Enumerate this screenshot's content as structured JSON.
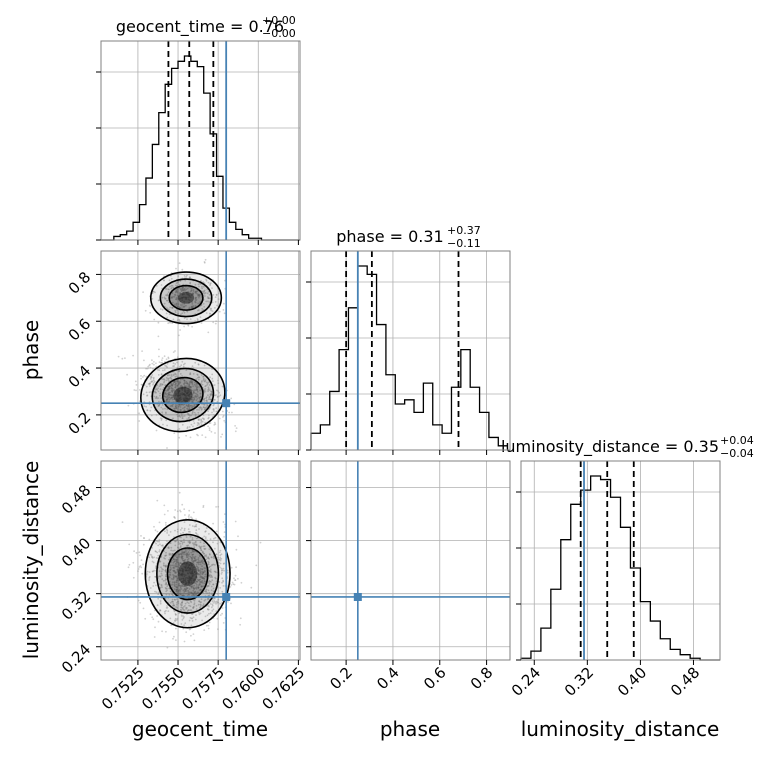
{
  "colors": {
    "truth": "#4682b4",
    "hist": "#000000",
    "grid": "#b0b0b0",
    "frame": "#808080",
    "quantile": "#000000",
    "density_fill": "#000000",
    "scatter": "#9a9a9a"
  },
  "chart_data": {
    "type": "corner",
    "title": "",
    "parameters": [
      {
        "name": "geocent_time",
        "xlabel": "geocent_time",
        "title_text": "geocent_time = 0.76",
        "title_sup": "+0.00",
        "title_sub": "−0.00",
        "ticks": [
          0.7525,
          0.755,
          0.7575,
          0.76,
          0.7625
        ],
        "tick_labels": [
          "0.7525",
          "0.7550",
          "0.7575",
          "0.7600",
          "0.7625"
        ],
        "range": [
          0.7502,
          0.7626
        ],
        "truth": 0.758,
        "quantiles": [
          0.7544,
          0.7557,
          0.7572
        ],
        "hist_bins": [
          0.7502,
          0.7506,
          0.751,
          0.7514,
          0.7518,
          0.7522,
          0.7526,
          0.753,
          0.7534,
          0.7538,
          0.7542,
          0.7546,
          0.755,
          0.7554,
          0.7558,
          0.7562,
          0.7566,
          0.757,
          0.7574,
          0.7578,
          0.7582,
          0.7586,
          0.759,
          0.7594,
          0.7598,
          0.7602,
          0.7606,
          0.761,
          0.7614,
          0.7618,
          0.7622,
          0.7626
        ],
        "hist_counts": [
          0,
          0,
          2,
          3,
          5,
          10,
          20,
          35,
          54,
          72,
          88,
          97,
          101,
          104,
          101,
          98,
          83,
          60,
          36,
          18,
          10,
          6,
          3,
          1,
          1,
          0,
          0,
          0,
          0,
          0,
          0
        ]
      },
      {
        "name": "phase",
        "xlabel": "phase",
        "ylabel": "phase",
        "title_text": "phase = 0.31",
        "title_sup": "+0.37",
        "title_sub": "−0.11",
        "ticks": [
          0.2,
          0.4,
          0.6,
          0.8
        ],
        "tick_labels": [
          "0.2",
          "0.4",
          "0.6",
          "0.8"
        ],
        "range": [
          0.05,
          0.9
        ],
        "truth": 0.25,
        "quantiles": [
          0.2,
          0.31,
          0.68
        ],
        "hist_bins": [
          0.05,
          0.09,
          0.13,
          0.17,
          0.21,
          0.25,
          0.29,
          0.33,
          0.37,
          0.41,
          0.45,
          0.49,
          0.53,
          0.57,
          0.61,
          0.65,
          0.69,
          0.73,
          0.77,
          0.81,
          0.85,
          0.89
        ],
        "hist_counts": [
          4,
          6,
          14,
          24,
          34,
          44,
          42,
          30,
          18,
          11,
          12,
          9,
          16,
          6,
          4,
          15,
          24,
          15,
          9,
          3,
          1
        ]
      },
      {
        "name": "luminosity_distance",
        "xlabel": "luminosity_distance",
        "ylabel": "luminosity_distance",
        "title_text": "luminosity_distance = 0.35",
        "title_sup": "+0.04",
        "title_sub": "−0.04",
        "ticks": [
          0.24,
          0.32,
          0.4,
          0.48
        ],
        "tick_labels": [
          "0.24",
          "0.32",
          "0.40",
          "0.48"
        ],
        "range": [
          0.22,
          0.52
        ],
        "truth": 0.315,
        "quantiles": [
          0.31,
          0.35,
          0.39
        ],
        "hist_bins": [
          0.22,
          0.235,
          0.25,
          0.265,
          0.28,
          0.295,
          0.31,
          0.325,
          0.34,
          0.355,
          0.37,
          0.385,
          0.4,
          0.415,
          0.43,
          0.445,
          0.46,
          0.475,
          0.49,
          0.505,
          0.52
        ],
        "hist_counts": [
          1,
          5,
          18,
          40,
          68,
          88,
          96,
          104,
          102,
          92,
          75,
          52,
          33,
          22,
          12,
          6,
          3,
          1,
          0,
          0
        ]
      }
    ]
  }
}
